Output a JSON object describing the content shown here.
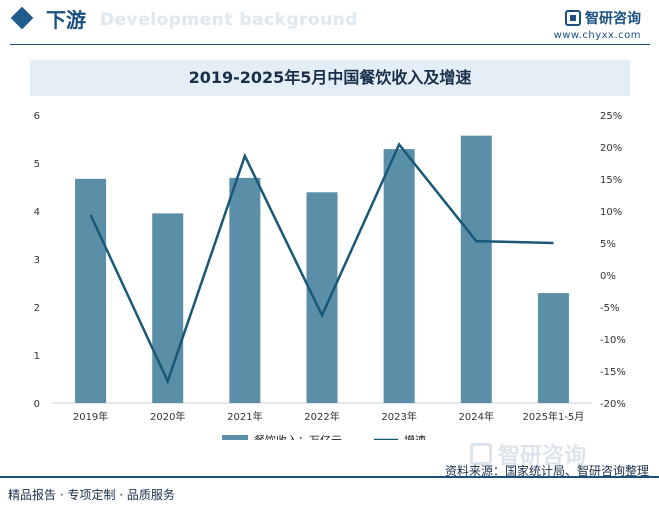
{
  "header": {
    "section_title": "下游",
    "watermark_text": "Development background",
    "brand_name": "智研咨询",
    "brand_url": "www.chyxx.com"
  },
  "chart_data": {
    "type": "bar+line",
    "title": "2019-2025年5月中国餐饮收入及增速",
    "categories": [
      "2019年",
      "2020年",
      "2021年",
      "2022年",
      "2023年",
      "2024年",
      "2025年1-5月"
    ],
    "series": [
      {
        "name": "餐饮收入：万亿元",
        "type": "bar",
        "axis": "left",
        "color": "#5b8fa8",
        "values": [
          4.67,
          3.95,
          4.69,
          4.39,
          5.29,
          5.57,
          2.29
        ]
      },
      {
        "name": "增速",
        "type": "line",
        "axis": "right",
        "color": "#1a5878",
        "values": [
          9.4,
          -16.6,
          18.6,
          -6.3,
          20.4,
          5.3,
          5.0
        ]
      }
    ],
    "y_left": {
      "min": 0,
      "max": 6,
      "ticks": [
        "0",
        "1",
        "2",
        "3",
        "4",
        "5",
        "6"
      ]
    },
    "y_right": {
      "min": -20,
      "max": 25,
      "ticks": [
        "-20%",
        "-15%",
        "-10%",
        "-5%",
        "0%",
        "5%",
        "10%",
        "15%",
        "20%",
        "25%"
      ]
    },
    "legend": {
      "position": "bottom",
      "items": [
        "餐饮收入：万亿元",
        "增速"
      ]
    }
  },
  "footer": {
    "left": "精品报告 · 专项定制 · 品质服务",
    "right": "资料来源：国家统计局、智研咨询整理",
    "watermark_brand": "智研咨询"
  }
}
